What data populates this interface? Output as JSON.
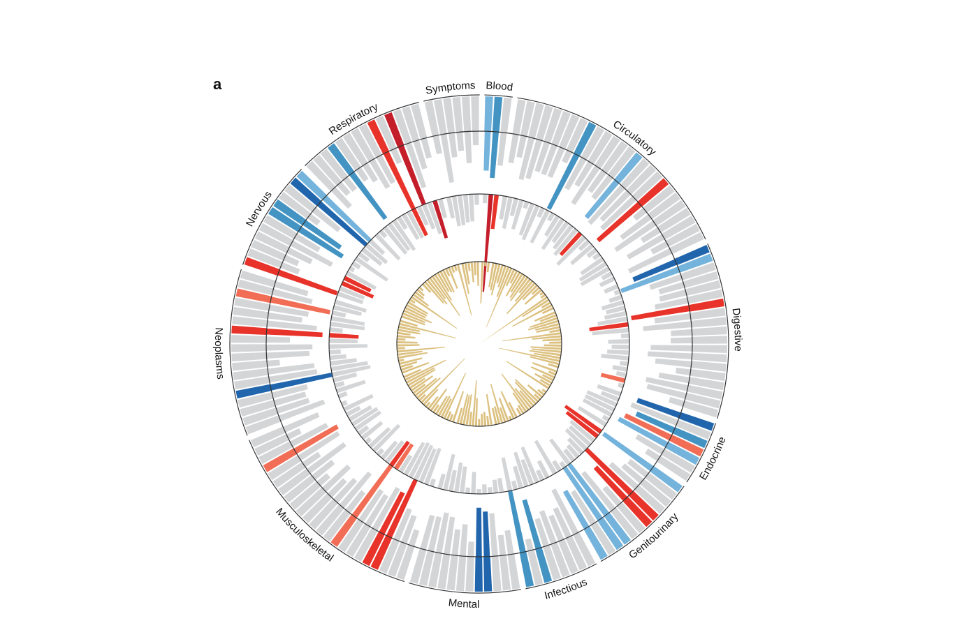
{
  "panel_label": "a",
  "colors": {
    "grey": "#d4d5d7",
    "dark_blue": "#2166ac",
    "mid_blue": "#4393c3",
    "light_blue": "#74b3dc",
    "red": "#e8332a",
    "light_red": "#f26d55",
    "dark_red": "#c41e2b",
    "gold": "#dcc181",
    "ring_line": "#333333"
  },
  "chart_data": {
    "type": "circular bar",
    "categories": [
      {
        "name": "Blood",
        "count": 3
      },
      {
        "name": "Circulatory",
        "count": 26
      },
      {
        "name": "Digestive",
        "count": 19
      },
      {
        "name": "Endocrine",
        "count": 7
      },
      {
        "name": "Genitourinary",
        "count": 12
      },
      {
        "name": "Infectious",
        "count": 8
      },
      {
        "name": "Mental",
        "count": 12
      },
      {
        "name": "Musculoskeletal",
        "count": 23
      },
      {
        "name": "Neoplasms",
        "count": 18
      },
      {
        "name": "Nervous",
        "count": 12
      },
      {
        "name": "Respiratory",
        "count": 14
      },
      {
        "name": "Symptoms",
        "count": 6
      }
    ],
    "outer_ring": {
      "description": "Per-disease stacked tiles; coloured entries are highlighted diseases",
      "highlights": [
        {
          "index": 0,
          "color": "light_blue"
        },
        {
          "index": 1,
          "color": "mid_blue"
        },
        {
          "index": 11,
          "color": "mid_blue"
        },
        {
          "index": 17,
          "color": "light_blue"
        },
        {
          "index": 21,
          "color": "red"
        },
        {
          "index": 29,
          "color": "dark_blue"
        },
        {
          "index": 30,
          "color": "light_blue"
        },
        {
          "index": 35,
          "color": "red"
        },
        {
          "index": 48,
          "color": "dark_blue"
        },
        {
          "index": 50,
          "color": "mid_blue"
        },
        {
          "index": 51,
          "color": "light_red"
        },
        {
          "index": 52,
          "color": "light_blue"
        },
        {
          "index": 55,
          "color": "light_blue"
        },
        {
          "index": 59,
          "color": "red"
        },
        {
          "index": 60,
          "color": "red"
        },
        {
          "index": 63,
          "color": "light_blue"
        },
        {
          "index": 64,
          "color": "light_blue"
        },
        {
          "index": 66,
          "color": "light_blue"
        },
        {
          "index": 72,
          "color": "mid_blue"
        },
        {
          "index": 74,
          "color": "mid_blue"
        },
        {
          "index": 78,
          "color": "dark_blue"
        },
        {
          "index": 79,
          "color": "dark_blue"
        },
        {
          "index": 90,
          "color": "red"
        },
        {
          "index": 91,
          "color": "red"
        },
        {
          "index": 95,
          "color": "light_red"
        },
        {
          "index": 106,
          "color": "light_red"
        },
        {
          "index": 114,
          "color": "dark_blue"
        },
        {
          "index": 121,
          "color": "red"
        },
        {
          "index": 125,
          "color": "light_red"
        },
        {
          "index": 128,
          "color": "red"
        },
        {
          "index": 134,
          "color": "mid_blue"
        },
        {
          "index": 135,
          "color": "mid_blue"
        },
        {
          "index": 138,
          "color": "dark_blue"
        },
        {
          "index": 139,
          "color": "light_blue"
        },
        {
          "index": 143,
          "color": "mid_blue"
        },
        {
          "index": 148,
          "color": "red"
        },
        {
          "index": 150,
          "color": "dark_red"
        }
      ]
    },
    "middle_ring": {
      "description": "Bars of relative magnitude 0-1; coloured bars highlighted",
      "highlights": [
        {
          "index": 1,
          "color": "dark_red",
          "value": 1.0
        },
        {
          "index": 2,
          "color": "red",
          "value": 0.35
        },
        {
          "index": 18,
          "color": "red",
          "value": 0.3
        },
        {
          "index": 36,
          "color": "red",
          "value": 0.4
        },
        {
          "index": 46,
          "color": "light_red",
          "value": 0.25
        },
        {
          "index": 55,
          "color": "red",
          "value": 0.45
        },
        {
          "index": 56,
          "color": "red",
          "value": 0.4
        },
        {
          "index": 94,
          "color": "light_red",
          "value": 0.3
        },
        {
          "index": 95,
          "color": "red",
          "value": 0.3
        },
        {
          "index": 121,
          "color": "red",
          "value": 0.3
        },
        {
          "index": 130,
          "color": "red",
          "value": 0.35
        },
        {
          "index": 131,
          "color": "red",
          "value": 0.3
        },
        {
          "index": 148,
          "color": "red",
          "value": 0.3
        },
        {
          "index": 152,
          "color": "dark_red",
          "value": 0.4
        }
      ]
    },
    "inner_ring": {
      "description": "Gold bars pointing inward, relative magnitude 0-1",
      "color": "gold"
    }
  }
}
